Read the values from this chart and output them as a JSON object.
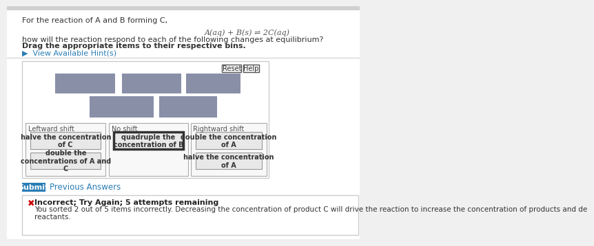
{
  "bg_color": "#f0f0f0",
  "panel_bg": "#ffffff",
  "title_text": "For the reaction of A and B forming C,",
  "equation": "A(aq) + B(s) ⇌ 2C(aq)",
  "question_text": "how will the reaction respond to each of the following changes at equilibrium?",
  "bold_text": "Drag the appropriate items to their respective bins.",
  "hint_text": "▶  View Available Hint(s)",
  "hint_color": "#2a7db5",
  "gray_box_color": "#8a8fa8",
  "reset_label": "Reset",
  "help_label": "Help",
  "bin_labels": [
    "Leftward shift",
    "No shift",
    "Rightward shift"
  ],
  "bin_items": {
    "Leftward shift": [
      "halve the concentration\nof C",
      "double the\nconcentrations of A and\nC"
    ],
    "No shift": [
      "quadruple the\nconcentration of B"
    ],
    "Rightward shift": [
      "double the concentration\nof A",
      "halve the concentration\nof A"
    ]
  },
  "no_shift_item_bold_border": true,
  "submit_label": "Submit",
  "submit_bg": "#2a7db5",
  "submit_text_color": "#ffffff",
  "prev_label": "Previous Answers",
  "prev_color": "#2a7db5",
  "error_icon": "✖",
  "error_icon_color": "#cc0000",
  "error_bold": "Incorrect; Try Again; 5 attempts remaining",
  "error_text": "You sorted 2 out of 5 items incorrectly. Decreasing the concentration of product C will drive the reaction to increase the concentration of products and de\nreactants.",
  "top_bar_color": "#d0d0d0",
  "item_box_bg": "#e8e8e8",
  "item_box_edge": "#999999",
  "bin_bg": "#f8f8f8",
  "bin_edge": "#aaaaaa",
  "error_box_bg": "#ffffff",
  "error_box_edge": "#cccccc"
}
